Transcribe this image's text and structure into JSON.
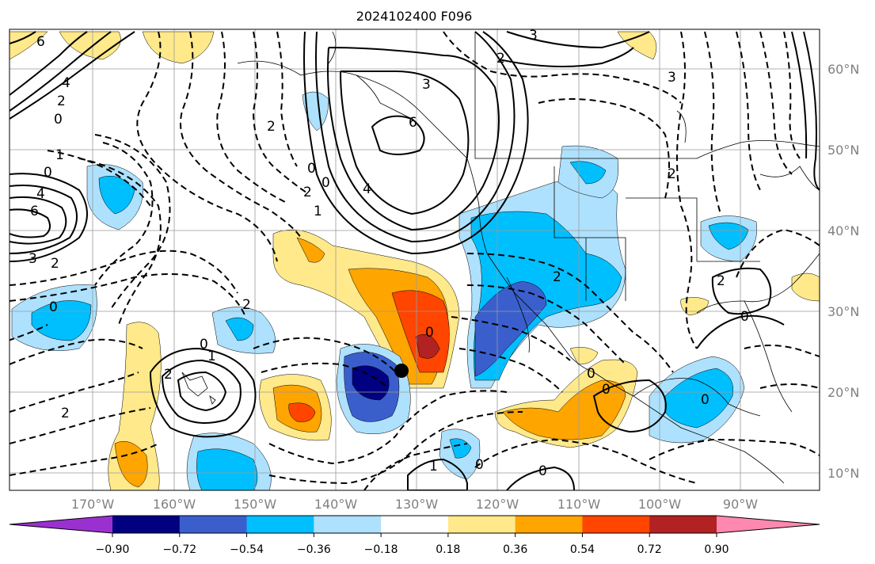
{
  "title": "2024102400 F096",
  "lat_labels": [
    "60°N",
    "50°N",
    "40°N",
    "30°N",
    "20°N",
    "10°N"
  ],
  "lon_labels": [
    "170°W",
    "160°W",
    "150°W",
    "140°W",
    "130°W",
    "120°W",
    "110°W",
    "100°W",
    "90°W"
  ],
  "colorbar": {
    "ticks": [
      "−0.90",
      "−0.72",
      "−0.54",
      "−0.36",
      "−0.18",
      "0.18",
      "0.36",
      "0.54",
      "0.72",
      "0.90"
    ],
    "colors": [
      "#9b30d0",
      "#000080",
      "#3a5fcd",
      "#00bfff",
      "#aee1fd",
      "#ffffff",
      "#ffe98a",
      "#ffa500",
      "#ff4500",
      "#b22222",
      "#ff88b0"
    ]
  },
  "contour_labels": [
    "6",
    "3",
    "2",
    "3",
    "4",
    "2",
    "0",
    "2",
    "1",
    "0",
    "4",
    "6",
    "3",
    "2",
    "0",
    "2",
    "0",
    "1",
    "2",
    "2",
    "0",
    "0",
    "1",
    "2",
    "0",
    "0",
    "0",
    "1",
    "0",
    "0",
    "2",
    "4",
    "6",
    "3",
    "0",
    "2",
    "2",
    "0"
  ],
  "marker": "storm-center"
}
